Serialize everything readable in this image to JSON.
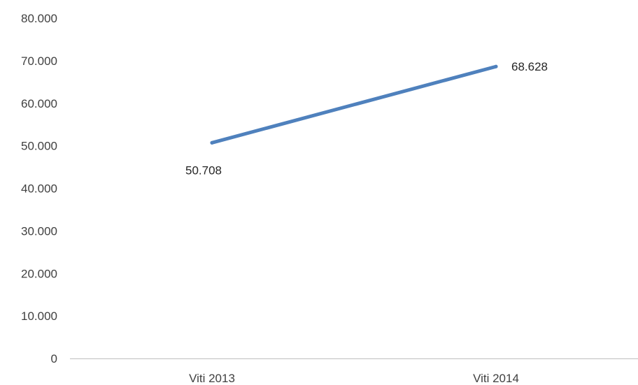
{
  "chart_data": {
    "type": "line",
    "categories": [
      "Viti 2013",
      "Viti 2014"
    ],
    "series": [
      {
        "values": [
          50708,
          68628
        ],
        "data_labels": [
          "50.708",
          "68.628"
        ],
        "color": "#4f81bd"
      }
    ],
    "ylim": [
      0,
      80000
    ],
    "y_ticks": [
      0,
      10000,
      20000,
      30000,
      40000,
      50000,
      60000,
      70000,
      80000
    ],
    "y_tick_labels": [
      "0",
      "10.000",
      "20.000",
      "30.000",
      "40.000",
      "50.000",
      "60.000",
      "70.000",
      "80.000"
    ],
    "grid": false,
    "legend": "none",
    "title": "",
    "xlabel": "",
    "ylabel": ""
  }
}
